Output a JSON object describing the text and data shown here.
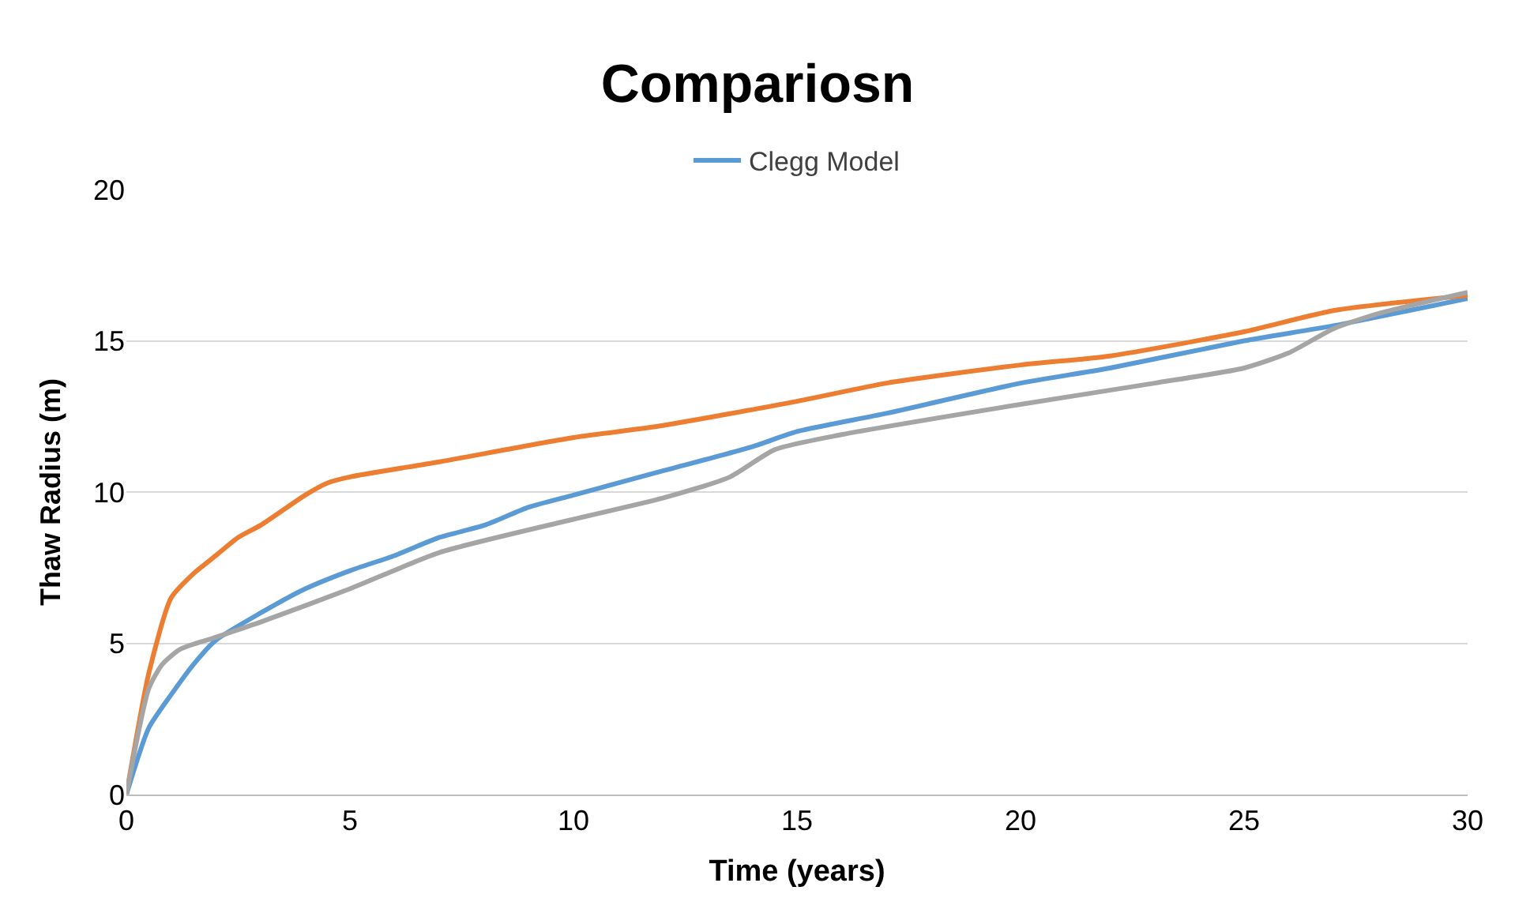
{
  "chart_data": {
    "type": "line",
    "title": "Compariosn",
    "xlabel": "Time (years)",
    "ylabel": "Thaw Radius (m)",
    "xlim": [
      0,
      30
    ],
    "xticks": [
      0,
      5,
      10,
      15,
      20,
      25,
      30
    ],
    "ylim": [
      0,
      20
    ],
    "yticks": [
      0,
      5,
      10,
      15,
      20
    ],
    "grid": "y",
    "legend": "top",
    "marker": "none",
    "line_style": "solid",
    "series": [
      {
        "name": "Clegg Model",
        "color": "#5b9bd5",
        "x": [
          0,
          0.5,
          1,
          1.5,
          2,
          3,
          4,
          5,
          6,
          7,
          8,
          9,
          10,
          12,
          14,
          15,
          17,
          20,
          22,
          25,
          27,
          30
        ],
        "values": [
          0,
          2.2,
          3.3,
          4.3,
          5.1,
          6,
          6.8,
          7.4,
          7.9,
          8.5,
          8.9,
          9.5,
          9.9,
          10.7,
          11.5,
          12,
          12.6,
          13.6,
          14.1,
          15,
          15.5,
          16.4
        ]
      },
      {
        "color": "#ed7d31",
        "x": [
          0,
          0.5,
          1,
          1.5,
          2,
          2.5,
          3,
          4,
          4.5,
          5,
          7,
          10,
          12,
          15,
          17,
          20,
          22,
          25,
          27,
          30
        ],
        "values": [
          0,
          4,
          6.5,
          7.3,
          7.9,
          8.5,
          8.9,
          9.9,
          10.3,
          10.5,
          11,
          11.8,
          12.2,
          13,
          13.6,
          14.2,
          14.5,
          15.3,
          16,
          16.5
        ]
      },
      {
        "color": "#a5a5a5",
        "x": [
          0,
          0.5,
          0.8,
          1.2,
          2,
          3,
          5,
          7,
          10,
          12,
          13.5,
          14.5,
          16,
          20,
          23,
          25,
          26,
          27,
          28,
          30
        ],
        "values": [
          0,
          3.5,
          4.3,
          4.8,
          5.2,
          5.7,
          6.8,
          8,
          9.1,
          9.8,
          10.5,
          11.4,
          11.9,
          12.9,
          13.6,
          14.1,
          14.6,
          15.4,
          15.9,
          16.6
        ]
      }
    ]
  }
}
